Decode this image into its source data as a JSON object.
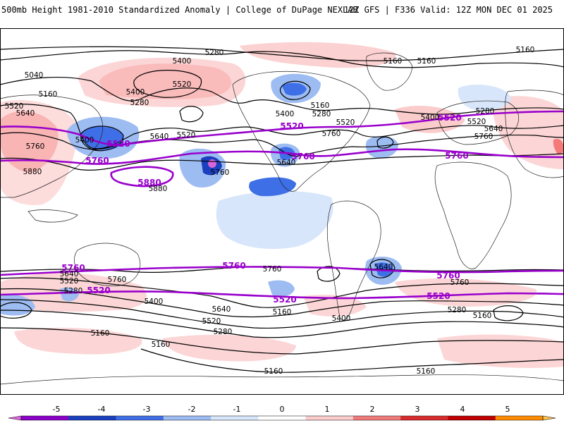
{
  "header": {
    "title_left": "500mb Height 1981-2010 Standardized Anomaly | College of DuPage NEXLAB",
    "title_right": "12Z GFS | F336 Valid: 12Z MON DEC 01 2025"
  },
  "map": {
    "height_contour_color": "#000000",
    "highlight_contour_color": "#9900cc",
    "highlight_labels": [
      "5520",
      "5760",
      "5880"
    ],
    "contour_labels": [
      "5280",
      "5400",
      "5160",
      "5040",
      "5520",
      "5640",
      "5760",
      "5880"
    ],
    "features": [
      "coastlines",
      "country-borders",
      "height-contours",
      "standardized-anomaly-shading"
    ]
  },
  "colorbar": {
    "ticks": [
      "-5",
      "-4",
      "-3",
      "-2",
      "-1",
      "0",
      "1",
      "2",
      "3",
      "4",
      "5"
    ],
    "colors": [
      "#e066e0",
      "#8b00c8",
      "#1a3fbf",
      "#3f6fe6",
      "#9dbcf2",
      "#d8e6fb",
      "#ffffff",
      "#fbcccc",
      "#f07a7a",
      "#d92b2b",
      "#c00000",
      "#ff8c00",
      "#ffc34d"
    ]
  }
}
